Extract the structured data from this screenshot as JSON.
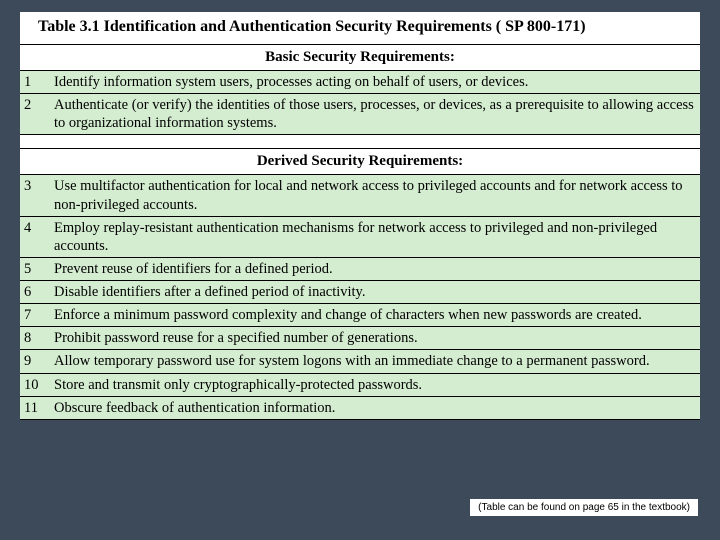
{
  "colors": {
    "page_bg": "#3d4a5a",
    "table_bg": "#ffffff",
    "row_bg": "#d4edd0",
    "border": "#000000",
    "text": "#000000"
  },
  "typography": {
    "title_fontsize": 16,
    "section_fontsize": 15,
    "body_fontsize": 14.5,
    "footnote_fontsize": 10,
    "title_weight": "bold",
    "font_family": "Times New Roman"
  },
  "table": {
    "title": "Table 3.1   Identification and Authentication Security Requirements ( SP 800-171)",
    "sections": [
      {
        "header": "Basic Security Requirements:",
        "rows": [
          {
            "num": "1",
            "text": "Identify information system users, processes acting on behalf of users, or devices."
          },
          {
            "num": "2",
            "text": "Authenticate (or verify) the identities of those users, processes, or devices, as a prerequisite to allowing access to organizational information systems."
          }
        ]
      },
      {
        "header": "Derived Security Requirements:",
        "rows": [
          {
            "num": "3",
            "text": "Use multifactor authentication for local and network access to privileged accounts and for network access to non-privileged accounts."
          },
          {
            "num": "4",
            "text": "Employ replay-resistant authentication mechanisms for network access to privileged and non-privileged accounts."
          },
          {
            "num": "5",
            "text": "Prevent reuse of identifiers for a defined period."
          },
          {
            "num": "6",
            "text": "Disable identifiers after a defined period of inactivity."
          },
          {
            "num": "7",
            "text": "Enforce a minimum password complexity and change of characters when new passwords are created."
          },
          {
            "num": "8",
            "text": "Prohibit password reuse for a specified number of generations."
          },
          {
            "num": "9",
            "text": "Allow temporary password use for system logons with an immediate change to a permanent password."
          },
          {
            "num": "10",
            "text": "Store and transmit only cryptographically-protected passwords."
          },
          {
            "num": "11",
            "text": "Obscure feedback of authentication information."
          }
        ]
      }
    ]
  },
  "footnote": "(Table can be found on page 65 in the textbook)"
}
